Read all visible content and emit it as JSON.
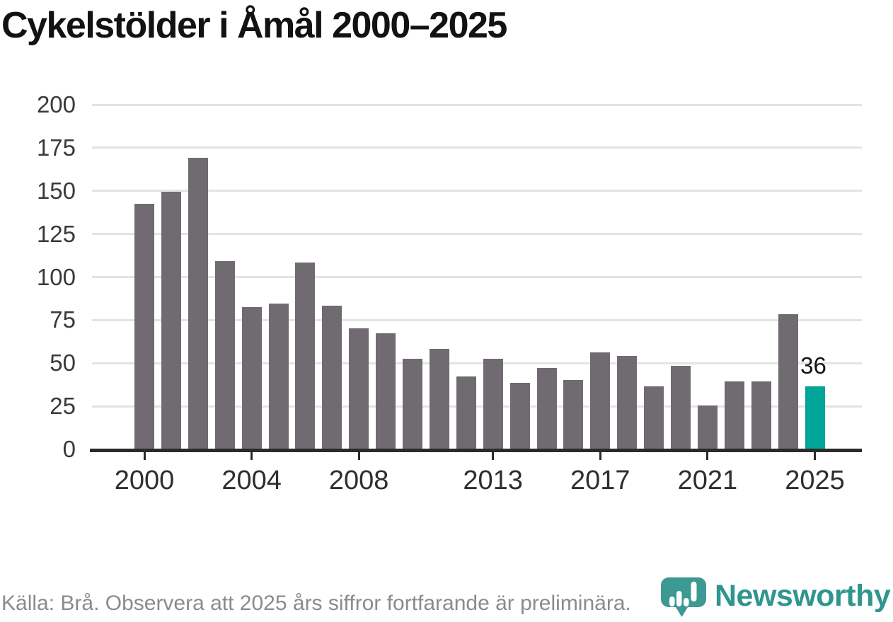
{
  "title": "Cykelstölder i Åmål 2000–2025",
  "footer": {
    "text": "Källa: Brå. Observera att 2025 års siffror fortfarande är preliminära."
  },
  "logo": {
    "text": "Newsworthy",
    "icon": "newsworthy-pin-barchart-icon"
  },
  "colors": {
    "bar": "#6f6b70",
    "highlight": "#00a598",
    "gridline": "#e3e3e3",
    "axis": "#2b2b2b",
    "title_text": "#121212",
    "tick_label": "#2e2e2e",
    "footer_text": "#8b8b8b",
    "logo_teal": "#2f968e",
    "logo_icon_teal": "#3d9a93"
  },
  "chart_data": {
    "type": "bar",
    "title": "Cykelstölder i Åmål 2000–2025",
    "xlabel": "",
    "ylabel": "",
    "x": [
      2000,
      2001,
      2002,
      2003,
      2004,
      2005,
      2006,
      2007,
      2008,
      2009,
      2010,
      2011,
      2012,
      2013,
      2014,
      2015,
      2016,
      2017,
      2018,
      2019,
      2020,
      2021,
      2022,
      2023,
      2024,
      2025
    ],
    "values": [
      142,
      149,
      169,
      109,
      82,
      84,
      108,
      83,
      70,
      67,
      52,
      58,
      42,
      52,
      38,
      47,
      40,
      56,
      54,
      36,
      48,
      25,
      39,
      39,
      78,
      36
    ],
    "highlight_year": 2025,
    "bar_label": {
      "year": 2025,
      "text": "36"
    },
    "yticks": [
      0,
      25,
      50,
      75,
      100,
      125,
      150,
      175,
      200
    ],
    "xticks": [
      2000,
      2004,
      2008,
      2013,
      2017,
      2021,
      2025
    ],
    "ylim": [
      0,
      200
    ],
    "grid": true,
    "legend": "none"
  }
}
